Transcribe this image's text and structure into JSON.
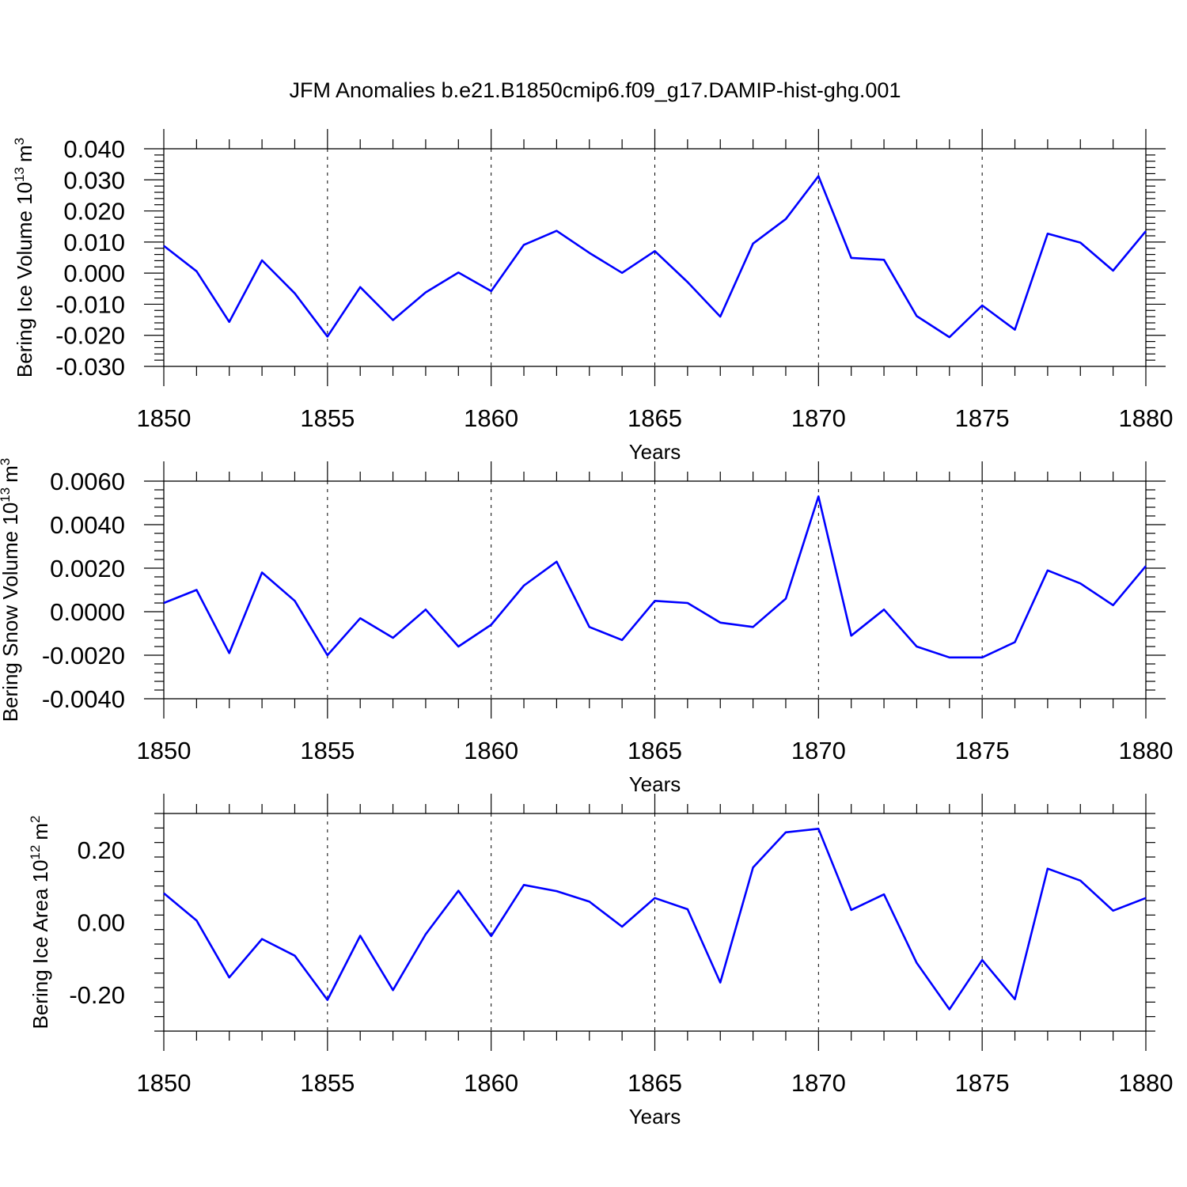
{
  "title": "JFM Anomalies b.e21.B1850cmip6.f09_g17.DAMIP-hist-ghg.001",
  "colors": {
    "line": "#0000ff",
    "axes": "#000000"
  },
  "chart_data": [
    {
      "type": "line",
      "ylabel_main": "Bering Ice Volume 10",
      "ylabel_exp": "13",
      "ylabel_unit": "m",
      "ylabel_unit_exp": "3",
      "xlabel": "Years",
      "xlim": [
        1850,
        1880
      ],
      "ylim": [
        -0.03,
        0.04
      ],
      "yticks": [
        -0.03,
        -0.02,
        -0.01,
        0.0,
        0.01,
        0.02,
        0.03,
        0.04
      ],
      "ytick_labels": [
        "-0.030",
        "-0.020",
        "-0.010",
        "0.000",
        "0.010",
        "0.020",
        "0.030",
        "0.040"
      ],
      "xticks": [
        1850,
        1855,
        1860,
        1865,
        1870,
        1875,
        1880
      ],
      "xtick_labels": [
        "1850",
        "1855",
        "1860",
        "1865",
        "1870",
        "1875",
        "1880"
      ],
      "x": [
        1850,
        1851,
        1852,
        1853,
        1854,
        1855,
        1856,
        1857,
        1858,
        1859,
        1860,
        1861,
        1862,
        1863,
        1864,
        1865,
        1866,
        1867,
        1868,
        1869,
        1870,
        1871,
        1872,
        1873,
        1874,
        1875,
        1876,
        1877,
        1878,
        1879,
        1880
      ],
      "y": [
        0.0088,
        0.0006,
        -0.0157,
        0.0041,
        -0.0065,
        -0.0204,
        -0.0045,
        -0.0151,
        -0.0062,
        0.0002,
        -0.0058,
        0.0091,
        0.0136,
        0.0065,
        0.0001,
        0.0071,
        -0.0029,
        -0.014,
        0.0095,
        0.0174,
        0.0312,
        0.0049,
        0.0043,
        -0.0138,
        -0.0206,
        -0.0104,
        -0.0182,
        0.0127,
        0.0098,
        0.0008,
        0.0135
      ],
      "grid_x": [
        1855,
        1860,
        1865,
        1870,
        1875
      ]
    },
    {
      "type": "line",
      "ylabel_main": "Bering Snow Volume 10",
      "ylabel_exp": "13",
      "ylabel_unit": "m",
      "ylabel_unit_exp": "3",
      "xlabel": "Years",
      "xlim": [
        1850,
        1880
      ],
      "ylim": [
        -0.004,
        0.006
      ],
      "yticks": [
        -0.004,
        -0.002,
        0.0,
        0.002,
        0.004,
        0.006
      ],
      "ytick_labels": [
        "-0.0040",
        "-0.0020",
        "0.0000",
        "0.0020",
        "0.0040",
        "0.0060"
      ],
      "xticks": [
        1850,
        1855,
        1860,
        1865,
        1870,
        1875,
        1880
      ],
      "xtick_labels": [
        "1850",
        "1855",
        "1860",
        "1865",
        "1870",
        "1875",
        "1880"
      ],
      "x": [
        1850,
        1851,
        1852,
        1853,
        1854,
        1855,
        1856,
        1857,
        1858,
        1859,
        1860,
        1861,
        1862,
        1863,
        1864,
        1865,
        1866,
        1867,
        1868,
        1869,
        1870,
        1871,
        1872,
        1873,
        1874,
        1875,
        1876,
        1877,
        1878,
        1879,
        1880
      ],
      "y": [
        0.0004,
        0.001,
        -0.0019,
        0.0018,
        0.0005,
        -0.002,
        -0.0003,
        -0.0012,
        0.0001,
        -0.0016,
        -0.0006,
        0.0012,
        0.0023,
        -0.0007,
        -0.0013,
        0.0005,
        0.0004,
        -0.0005,
        -0.0007,
        0.0006,
        0.0053,
        -0.0011,
        0.0001,
        -0.0016,
        -0.0021,
        -0.0021,
        -0.0014,
        0.0019,
        0.0013,
        0.0003,
        0.0021
      ],
      "grid_x": [
        1855,
        1860,
        1865,
        1870,
        1875
      ]
    },
    {
      "type": "line",
      "ylabel_main": "Bering Ice Area 10",
      "ylabel_exp": "12",
      "ylabel_unit": "m",
      "ylabel_unit_exp": "2",
      "xlabel": "Years",
      "xlim": [
        1850,
        1880
      ],
      "ylim": [
        -0.3,
        0.3
      ],
      "yticks": [
        -0.2,
        0.0,
        0.2
      ],
      "ytick_labels": [
        "-0.20",
        "0.00",
        "0.20"
      ],
      "xticks": [
        1850,
        1855,
        1860,
        1865,
        1870,
        1875,
        1880
      ],
      "xtick_labels": [
        "1850",
        "1855",
        "1860",
        "1865",
        "1870",
        "1875",
        "1880"
      ],
      "x": [
        1850,
        1851,
        1852,
        1853,
        1854,
        1855,
        1856,
        1857,
        1858,
        1859,
        1860,
        1861,
        1862,
        1863,
        1864,
        1865,
        1866,
        1867,
        1868,
        1869,
        1870,
        1871,
        1872,
        1873,
        1874,
        1875,
        1876,
        1877,
        1878,
        1879,
        1880
      ],
      "y": [
        0.08,
        0.005,
        -0.152,
        -0.046,
        -0.092,
        -0.214,
        -0.037,
        -0.187,
        -0.033,
        0.087,
        -0.038,
        0.103,
        0.086,
        0.057,
        -0.012,
        0.067,
        0.036,
        -0.166,
        0.151,
        0.248,
        0.258,
        0.034,
        0.077,
        -0.112,
        -0.24,
        -0.104,
        -0.212,
        0.148,
        0.115,
        0.032,
        0.067
      ],
      "grid_x": [
        1855,
        1860,
        1865,
        1870,
        1875
      ]
    }
  ]
}
